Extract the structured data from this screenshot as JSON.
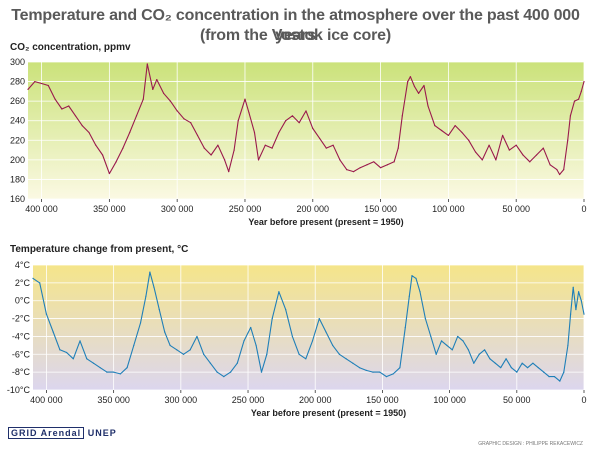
{
  "title_line1": "Temperature and CO₂ concentration in the atmosphere over the past 400 000 years",
  "title_line2": "(from the Vostok ice core)",
  "footer": {
    "logo_text": "GRID Arendal",
    "logo2_text": "UNEP",
    "credit": "GRAPHIC DESIGN : PHILIPPE REKACEWICZ"
  },
  "colors": {
    "co2_line": "#9a1a4c",
    "temp_line": "#1f7fb8",
    "co2_bg_top": "#cbe27a",
    "co2_bg_bottom": "#fbf9e3",
    "temp_bg_top": "#f5e58a",
    "temp_bg_bottom": "#dcd6ee",
    "grid": "#ffffff"
  },
  "chart_data": [
    {
      "type": "line",
      "title": "",
      "ylabel": "CO₂ concentration, ppmv",
      "xlabel": "Year before present (present = 1950)",
      "xlim": [
        410000,
        0
      ],
      "ylim": [
        160,
        300
      ],
      "x_ticks": [
        400000,
        350000,
        300000,
        250000,
        200000,
        150000,
        100000,
        50000,
        0
      ],
      "x_tick_labels": [
        "400 000",
        "350 000",
        "300 000",
        "250 000",
        "200 000",
        "150 000",
        "100 000",
        "50 000",
        "0"
      ],
      "y_ticks": [
        160,
        180,
        200,
        220,
        240,
        260,
        280,
        300
      ],
      "y_tick_labels": [
        "160",
        "180",
        "200",
        "220",
        "240",
        "260",
        "280",
        "300"
      ],
      "grid": true,
      "series": [
        {
          "name": "",
          "x": [
            410000,
            405000,
            400000,
            395000,
            390000,
            385000,
            380000,
            375000,
            370000,
            365000,
            360000,
            355000,
            350000,
            345000,
            340000,
            335000,
            330000,
            325000,
            322000,
            318000,
            315000,
            310000,
            305000,
            300000,
            295000,
            290000,
            285000,
            280000,
            275000,
            270000,
            265000,
            262000,
            258000,
            255000,
            250000,
            247000,
            243000,
            240000,
            235000,
            230000,
            225000,
            220000,
            215000,
            210000,
            205000,
            200000,
            195000,
            190000,
            185000,
            180000,
            175000,
            170000,
            165000,
            160000,
            155000,
            150000,
            145000,
            140000,
            137000,
            134000,
            130000,
            128000,
            125000,
            122000,
            118000,
            115000,
            110000,
            105000,
            100000,
            95000,
            90000,
            85000,
            80000,
            75000,
            70000,
            65000,
            60000,
            55000,
            50000,
            45000,
            40000,
            35000,
            30000,
            25000,
            20000,
            18000,
            15000,
            12000,
            10000,
            7000,
            4000,
            2000,
            0
          ],
          "values": [
            272,
            280,
            278,
            276,
            262,
            252,
            255,
            245,
            235,
            228,
            215,
            205,
            186,
            198,
            212,
            228,
            245,
            262,
            298,
            272,
            282,
            268,
            260,
            250,
            242,
            238,
            225,
            212,
            205,
            215,
            200,
            188,
            210,
            240,
            262,
            248,
            228,
            200,
            215,
            212,
            228,
            240,
            245,
            238,
            250,
            232,
            222,
            212,
            215,
            200,
            190,
            188,
            192,
            195,
            198,
            192,
            195,
            198,
            212,
            245,
            280,
            285,
            275,
            268,
            276,
            255,
            235,
            230,
            225,
            235,
            228,
            220,
            208,
            200,
            215,
            200,
            225,
            210,
            215,
            205,
            198,
            205,
            212,
            195,
            190,
            185,
            190,
            220,
            245,
            260,
            262,
            270,
            280
          ]
        }
      ]
    },
    {
      "type": "line",
      "title": "",
      "ylabel": "Temperature change from present, °C",
      "xlabel": "Year before present (present = 1950)",
      "xlim": [
        410000,
        0
      ],
      "ylim": [
        -10,
        4
      ],
      "x_ticks": [
        400000,
        350000,
        300000,
        250000,
        200000,
        150000,
        100000,
        50000,
        0
      ],
      "x_tick_labels": [
        "400 000",
        "350 000",
        "300 000",
        "250 000",
        "200 000",
        "150 000",
        "100 000",
        "50 000",
        "0"
      ],
      "y_ticks": [
        4,
        2,
        0,
        -2,
        -4,
        -6,
        -8,
        -10
      ],
      "y_tick_labels": [
        "4°C",
        "2°C",
        "0°C",
        "-2°C",
        "-4°C",
        "-6°C",
        "-8°C",
        "-10°C"
      ],
      "grid": true,
      "series": [
        {
          "name": "",
          "x": [
            410000,
            405000,
            400000,
            395000,
            390000,
            385000,
            380000,
            375000,
            370000,
            365000,
            360000,
            355000,
            350000,
            345000,
            340000,
            335000,
            330000,
            326000,
            323000,
            320000,
            316000,
            312000,
            308000,
            303000,
            298000,
            293000,
            288000,
            283000,
            278000,
            273000,
            268000,
            263000,
            258000,
            253000,
            248000,
            244000,
            240000,
            236000,
            232000,
            227000,
            222000,
            217000,
            212000,
            207000,
            202000,
            197000,
            192000,
            187000,
            182000,
            177000,
            172000,
            167000,
            162000,
            157000,
            152000,
            147000,
            142000,
            137000,
            133000,
            130000,
            128000,
            125000,
            122000,
            118000,
            114000,
            110000,
            106000,
            102000,
            98000,
            94000,
            90000,
            86000,
            82000,
            78000,
            74000,
            70000,
            66000,
            62000,
            58000,
            54000,
            50000,
            46000,
            42000,
            38000,
            34000,
            30000,
            26000,
            22000,
            18000,
            15000,
            12000,
            10000,
            8000,
            6000,
            4000,
            2000,
            0
          ],
          "values": [
            2.5,
            2.0,
            -1.5,
            -3.5,
            -5.5,
            -5.8,
            -6.5,
            -4.5,
            -6.5,
            -7.0,
            -7.5,
            -8.0,
            -8.0,
            -8.2,
            -7.5,
            -5.0,
            -2.5,
            0.5,
            3.2,
            1.5,
            -1.0,
            -3.5,
            -5.0,
            -5.5,
            -6.0,
            -5.5,
            -4.0,
            -6.0,
            -7.0,
            -8.0,
            -8.5,
            -8.0,
            -7.0,
            -4.5,
            -3.0,
            -5.0,
            -8.0,
            -6.0,
            -2.0,
            1.0,
            -1.0,
            -4.0,
            -6.0,
            -6.5,
            -4.5,
            -2.0,
            -3.5,
            -5.0,
            -6.0,
            -6.5,
            -7.0,
            -7.5,
            -7.8,
            -8.0,
            -8.0,
            -8.5,
            -8.2,
            -7.5,
            -3.0,
            0.5,
            2.8,
            2.5,
            1.0,
            -2.0,
            -4.0,
            -6.0,
            -4.5,
            -5.0,
            -5.5,
            -4.0,
            -4.5,
            -5.5,
            -7.0,
            -6.0,
            -5.5,
            -6.5,
            -7.0,
            -7.5,
            -6.5,
            -7.5,
            -8.0,
            -7.0,
            -7.5,
            -7.0,
            -7.5,
            -8.0,
            -8.5,
            -8.5,
            -9.0,
            -8.0,
            -5.0,
            -1.5,
            1.5,
            -1.0,
            1.0,
            0.0,
            -1.5
          ]
        }
      ]
    }
  ]
}
